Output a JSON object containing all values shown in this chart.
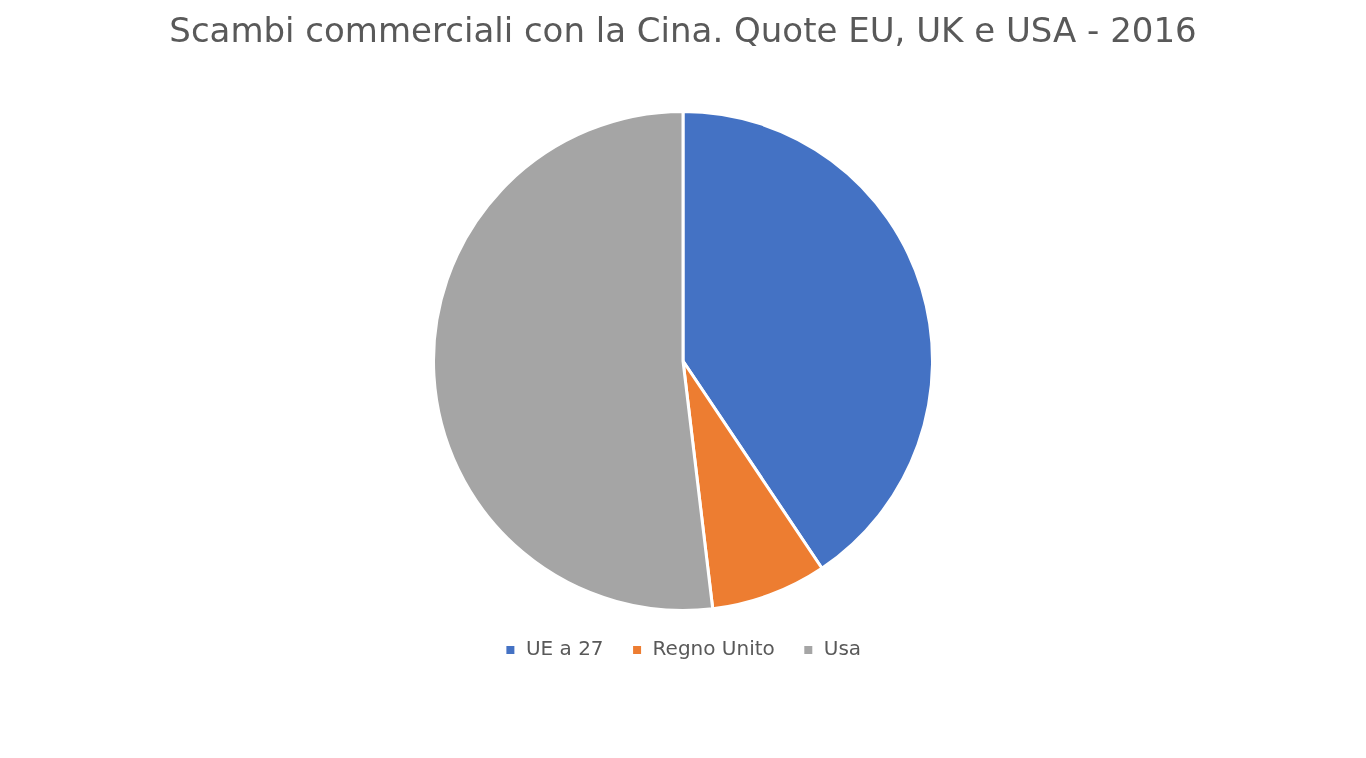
{
  "chart_data": {
    "type": "pie",
    "title": "Scambi commerciali con la Cina. Quote EU, UK e USA - 2016",
    "categories": [
      "UE a 27",
      "Regno Unito",
      "Usa"
    ],
    "values": [
      40.6,
      7.5,
      51.9
    ],
    "colors": [
      "#4472c4",
      "#ed7d31",
      "#a5a5a5"
    ],
    "legend": "bottom"
  }
}
